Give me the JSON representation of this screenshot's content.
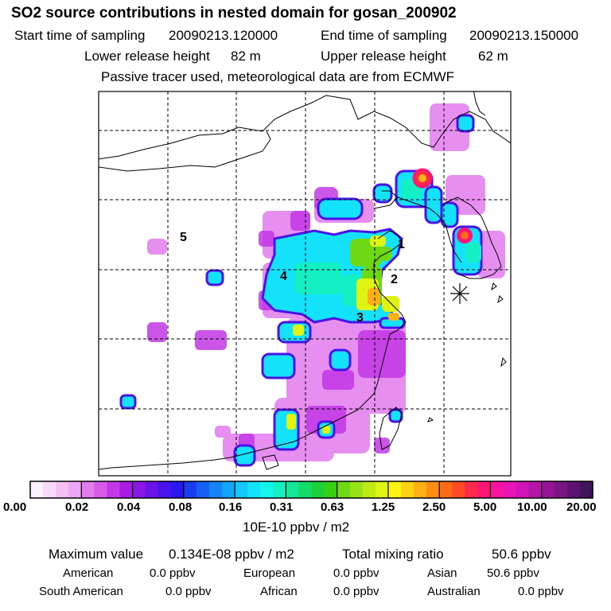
{
  "title": "SO2 source contributions in nested domain for gosan_200902",
  "sampling": {
    "start_label": "Start time of sampling",
    "start_value": "20090213.120000",
    "end_label": "End time of sampling",
    "end_value": "20090213.150000"
  },
  "release": {
    "lower_label": "Lower release height",
    "lower_value": "82 m",
    "upper_label": "Upper release height",
    "upper_value": "62 m"
  },
  "note": "Passive tracer used, meteorological data are from ECMWF",
  "map": {
    "region_labels": [
      "1",
      "2",
      "3",
      "4",
      "5"
    ],
    "receptor_marker": "asterisk"
  },
  "colorbar": {
    "ticks": [
      "0.00",
      "0.02",
      "0.04",
      "0.08",
      "0.16",
      "0.31",
      "0.63",
      "1.25",
      "2.50",
      "5.00",
      "10.00",
      "20.00"
    ],
    "unit": "10E-10 ppbv / m2",
    "colors": [
      "#fff2ff",
      "#fad9fa",
      "#f4c0f4",
      "#eda6f5",
      "#e37bef",
      "#d85ae9",
      "#c337e6",
      "#a81be3",
      "#8b17e6",
      "#6a14e8",
      "#4a12ea",
      "#2a18ef",
      "#1a3df2",
      "#1660f4",
      "#1683f6",
      "#14a6f8",
      "#14c6fa",
      "#14e2fb",
      "#14f4ec",
      "#14f0c4",
      "#14e896",
      "#14dc6a",
      "#1cd03c",
      "#38d014",
      "#6ed814",
      "#96e214",
      "#bcea14",
      "#e0f414",
      "#fff214",
      "#ffd214",
      "#ffb014",
      "#ff8c14",
      "#ff6a14",
      "#ff4a24",
      "#ff2a4a",
      "#ff1478",
      "#f814a0",
      "#e814b4",
      "#d014b8",
      "#b414a8",
      "#961496",
      "#7a1484",
      "#5c1470",
      "#40145a"
    ]
  },
  "stats": {
    "max_label": "Maximum value",
    "max_value": "0.134E-08 ppbv / m2",
    "total_label": "Total mixing ratio",
    "total_value": "50.6 ppbv",
    "american_label": "American",
    "american_value": "0.0 ppbv",
    "european_label": "European",
    "european_value": "0.0 ppbv",
    "asian_label": "Asian",
    "asian_value": "50.6 ppbv",
    "south_american_label": "South American",
    "south_american_value": "0.0 ppbv",
    "african_label": "African",
    "african_value": "0.0 ppbv",
    "australian_label": "Australian",
    "australian_value": "0.0 ppbv"
  }
}
